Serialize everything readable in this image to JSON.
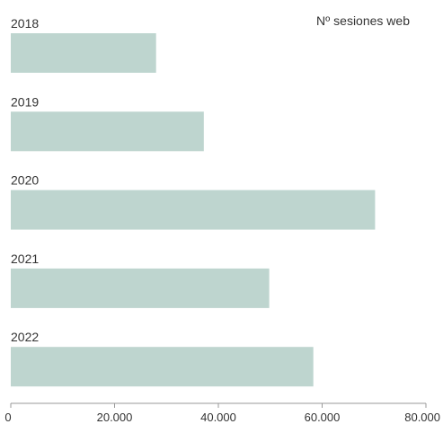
{
  "colors": {
    "bar": "#bed5cf",
    "axis": "#999999",
    "text": "#333333"
  },
  "chart_data": {
    "type": "bar",
    "orientation": "horizontal",
    "series_label": "Nº sesiones web",
    "categories": [
      "2018",
      "2019",
      "2020",
      "2021",
      "2022"
    ],
    "values": [
      28000,
      37200,
      70200,
      49800,
      58300
    ],
    "xlim": [
      0,
      80000
    ],
    "x_ticks": [
      {
        "value": 0,
        "label": "0"
      },
      {
        "value": 20000,
        "label": "20.000"
      },
      {
        "value": 40000,
        "label": "40.000"
      },
      {
        "value": 60000,
        "label": "60.000"
      },
      {
        "value": 80000,
        "label": "80.000"
      }
    ],
    "grid": false,
    "legend_position": "top-right"
  }
}
